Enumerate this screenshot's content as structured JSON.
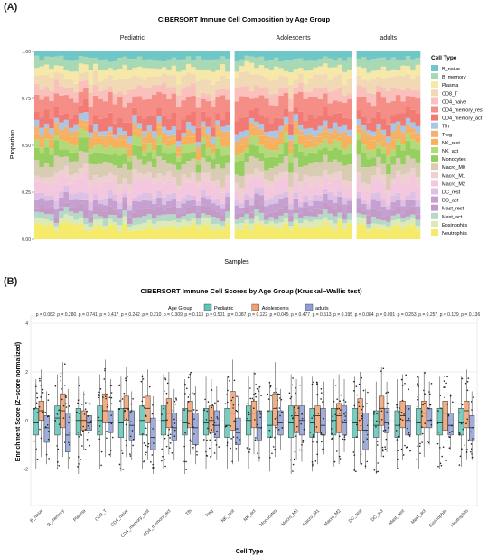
{
  "panel_labels": {
    "a": "(A)",
    "b": "(B)"
  },
  "chart_data": [
    {
      "type": "stacked-bar",
      "title": "CIBERSORT Immune Cell Composition by Age Group",
      "xlabel": "Samples",
      "ylabel": "Proportion",
      "ylim": [
        0,
        1
      ],
      "yticks": [
        "0.00",
        "0.25",
        "0.50",
        "0.75",
        "1.00"
      ],
      "facets": [
        {
          "name": "Pediatric",
          "samples": 40
        },
        {
          "name": "Adolescents",
          "samples": 24
        },
        {
          "name": "adults",
          "samples": 13
        }
      ],
      "legend": {
        "title": "Cell Type",
        "position": "right"
      },
      "cell_types": [
        "B_naive",
        "B_memory",
        "Plasma",
        "CD8_T",
        "CD4_naive",
        "CD4_memory_rest",
        "CD4_memory_act",
        "Tfh",
        "Treg",
        "NK_rest",
        "NK_act",
        "Monocytes",
        "Macro_M0",
        "Macro_M1",
        "Macro_M2",
        "DC_rest",
        "DC_act",
        "Mast_rest",
        "Mast_act",
        "Eosinophils",
        "Neutrophils"
      ],
      "colors": [
        "#6fc7c7",
        "#a9d9b4",
        "#f6e8a8",
        "#f2d9b5",
        "#f9c0bc",
        "#f58e86",
        "#f27a74",
        "#a9c6e6",
        "#f2b26e",
        "#f7b15a",
        "#b4d97a",
        "#95cf5f",
        "#d8cdb3",
        "#eed0d0",
        "#f3c8df",
        "#dcc1e4",
        "#c5a0d1",
        "#c49ac6",
        "#b6d8c8",
        "#dcebb6",
        "#f6ea6a"
      ],
      "mean_proportions": [
        0.04,
        0.05,
        0.05,
        0.06,
        0.05,
        0.09,
        0.055,
        0.03,
        0.03,
        0.035,
        0.04,
        0.06,
        0.07,
        0.04,
        0.07,
        0.03,
        0.04,
        0.035,
        0.03,
        0.03,
        0.065
      ]
    },
    {
      "type": "box",
      "title": "CIBERSORT Immune Cell Scores by Age Group (Kruskal−Wallis test)",
      "xlabel": "Cell Type",
      "ylabel": "Enrichment Score (Z−score normalized)",
      "ylim": [
        -3.5,
        4.3
      ],
      "yticks": [
        -2,
        0,
        2,
        4
      ],
      "legend": {
        "title": "Age Group",
        "position": "top"
      },
      "groups": [
        {
          "name": "Pediatric",
          "color": "#5fc4b4"
        },
        {
          "name": "Adolescents",
          "color": "#f0a070"
        },
        {
          "name": "adults",
          "color": "#8f9fd6"
        }
      ],
      "categories": [
        "B_naive",
        "B_memory",
        "Plasma",
        "CD8_T",
        "CD4_naive",
        "CD4_memory_rest",
        "CD4_memory_act",
        "Tfh",
        "Treg",
        "NK_rest",
        "NK_act",
        "Monocytes",
        "Macro_M0",
        "Macro_M1",
        "Macro_M2",
        "DC_rest",
        "DC_act",
        "Mast_rest",
        "Mast_act",
        "Eosinophils",
        "Neutrophils"
      ],
      "p_values": [
        "p = 0.082",
        "p = 0.280",
        "p = 0.741",
        "p = 0.417",
        "p = 0.242",
        "p = 0.210",
        "p = 0.309",
        "p = 0.113",
        "p = 0.501",
        "p = 0.087",
        "p = 0.122",
        "p = 0.045",
        "p = 0.477",
        "p = 0.513",
        "p = 0.195",
        "p = 0.084",
        "p = 0.091",
        "p = 0.253",
        "p = 0.257",
        "p = 0.129",
        "p = 0.136"
      ],
      "medians": [
        [
          -0.1,
          0.4,
          -0.3
        ],
        [
          0.1,
          0.4,
          -0.6
        ],
        [
          0.0,
          0.0,
          -0.1
        ],
        [
          0.0,
          0.4,
          -0.1
        ],
        [
          -0.1,
          0.5,
          -0.2
        ],
        [
          0.0,
          0.5,
          -0.7
        ],
        [
          0.0,
          0.3,
          -0.3
        ],
        [
          -0.1,
          0.4,
          -0.3
        ],
        [
          -0.1,
          0.0,
          -0.2
        ],
        [
          -0.2,
          0.3,
          -0.5
        ],
        [
          0.0,
          0.3,
          -0.3
        ],
        [
          -0.2,
          0.5,
          -0.1
        ],
        [
          -0.1,
          0.2,
          0.0
        ],
        [
          -0.1,
          0.2,
          -0.2
        ],
        [
          0.0,
          0.2,
          -0.1
        ],
        [
          -0.1,
          0.3,
          -0.4
        ],
        [
          -0.2,
          0.5,
          -0.1
        ],
        [
          -0.2,
          0.2,
          0.0
        ],
        [
          -0.1,
          0.3,
          0.0
        ],
        [
          -0.1,
          0.3,
          -0.2
        ],
        [
          -0.1,
          0.4,
          -0.3
        ]
      ],
      "q1": [
        [
          -0.6,
          0.0,
          -0.9
        ],
        [
          -0.6,
          -0.3,
          -1.3
        ],
        [
          -0.6,
          -0.4,
          -0.4
        ],
        [
          -0.6,
          -0.1,
          -0.5
        ],
        [
          -0.7,
          0.0,
          -0.8
        ],
        [
          -0.6,
          -0.1,
          -1.2
        ],
        [
          -0.6,
          -0.3,
          -0.8
        ],
        [
          -0.6,
          -0.3,
          -1.0
        ],
        [
          -0.6,
          -0.5,
          -0.7
        ],
        [
          -0.7,
          -0.4,
          -1.0
        ],
        [
          -0.6,
          -0.3,
          -0.8
        ],
        [
          -0.7,
          -0.2,
          -0.6
        ],
        [
          -0.7,
          -0.5,
          -0.6
        ],
        [
          -0.7,
          -0.5,
          -0.6
        ],
        [
          -0.6,
          -0.5,
          -0.6
        ],
        [
          -0.7,
          -0.4,
          -1.2
        ],
        [
          -0.7,
          -0.2,
          -0.5
        ],
        [
          -0.7,
          -0.3,
          -0.6
        ],
        [
          -0.6,
          -0.3,
          -0.3
        ],
        [
          -0.6,
          -0.4,
          -0.6
        ],
        [
          -0.6,
          -0.3,
          -0.8
        ]
      ],
      "q3": [
        [
          0.5,
          0.8,
          0.2
        ],
        [
          0.6,
          1.1,
          0.3
        ],
        [
          0.5,
          0.4,
          0.2
        ],
        [
          0.6,
          1.1,
          0.4
        ],
        [
          0.5,
          1.0,
          0.4
        ],
        [
          0.6,
          1.0,
          0.1
        ],
        [
          0.6,
          0.9,
          0.3
        ],
        [
          0.5,
          0.8,
          0.3
        ],
        [
          0.5,
          0.6,
          0.4
        ],
        [
          0.5,
          1.2,
          0.1
        ],
        [
          0.6,
          0.8,
          0.4
        ],
        [
          0.4,
          1.1,
          0.4
        ],
        [
          0.6,
          0.6,
          0.6
        ],
        [
          0.5,
          0.6,
          0.5
        ],
        [
          0.5,
          0.7,
          0.6
        ],
        [
          0.5,
          0.9,
          0.3
        ],
        [
          0.4,
          1.0,
          0.5
        ],
        [
          0.4,
          0.8,
          0.6
        ],
        [
          0.5,
          0.8,
          0.5
        ],
        [
          0.5,
          0.8,
          0.3
        ],
        [
          0.5,
          0.8,
          0.2
        ]
      ],
      "whisker_low": [
        [
          -2.0,
          -1.5,
          -1.8
        ],
        [
          -2.0,
          -1.5,
          -2.0
        ],
        [
          -2.2,
          -1.2,
          -1.1
        ],
        [
          -2.0,
          -1.5,
          -1.5
        ],
        [
          -2.1,
          -1.5,
          -1.6
        ],
        [
          -2.0,
          -1.6,
          -2.2
        ],
        [
          -2.0,
          -1.4,
          -1.6
        ],
        [
          -2.2,
          -1.4,
          -1.8
        ],
        [
          -2.0,
          -1.5,
          -1.6
        ],
        [
          -2.0,
          -1.8,
          -1.7
        ],
        [
          -2.0,
          -1.4,
          -1.7
        ],
        [
          -2.1,
          -1.5,
          -1.2
        ],
        [
          -2.2,
          -1.6,
          -1.7
        ],
        [
          -2.1,
          -1.8,
          -1.4
        ],
        [
          -1.9,
          -1.8,
          -1.3
        ],
        [
          -2.1,
          -1.8,
          -2.0
        ],
        [
          -2.2,
          -1.5,
          -1.3
        ],
        [
          -2.0,
          -1.6,
          -1.3
        ],
        [
          -2.0,
          -1.5,
          -1.0
        ],
        [
          -2.0,
          -1.7,
          -1.2
        ],
        [
          -1.9,
          -1.6,
          -1.6
        ]
      ],
      "whisker_high": [
        [
          1.7,
          2.1,
          1.2
        ],
        [
          1.9,
          2.4,
          1.3
        ],
        [
          1.8,
          1.2,
          0.8
        ],
        [
          1.9,
          2.5,
          1.7
        ],
        [
          1.8,
          2.2,
          1.2
        ],
        [
          1.9,
          2.1,
          1.0
        ],
        [
          1.9,
          2.0,
          1.3
        ],
        [
          1.7,
          2.0,
          1.4
        ],
        [
          1.8,
          1.7,
          1.4
        ],
        [
          1.8,
          2.5,
          1.0
        ],
        [
          1.8,
          2.0,
          1.4
        ],
        [
          1.6,
          2.4,
          1.3
        ],
        [
          1.9,
          1.7,
          1.8
        ],
        [
          1.8,
          1.6,
          1.6
        ],
        [
          1.7,
          1.9,
          1.7
        ],
        [
          1.8,
          2.0,
          1.3
        ],
        [
          1.6,
          2.2,
          1.6
        ],
        [
          1.7,
          1.9,
          1.9
        ],
        [
          1.8,
          2.0,
          1.6
        ],
        [
          1.8,
          2.0,
          1.1
        ],
        [
          1.8,
          2.1,
          1.2
        ]
      ]
    }
  ]
}
